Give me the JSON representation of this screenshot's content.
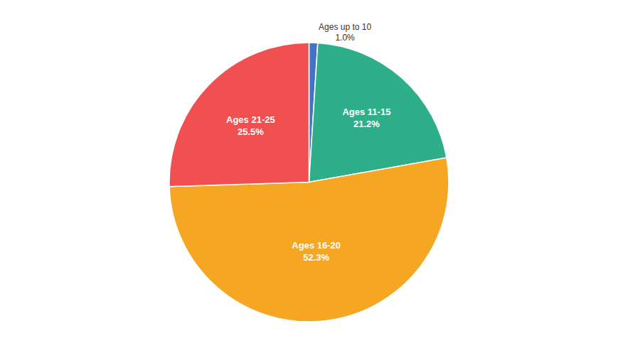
{
  "chart_data": {
    "type": "pie",
    "categories": [
      "Ages up to 10",
      "Ages 11-15",
      "Ages 16-20",
      "Ages 21-25"
    ],
    "values": [
      1.0,
      21.2,
      52.3,
      25.5
    ],
    "value_labels": [
      "1.0%",
      "21.2%",
      "52.3%",
      "25.5%"
    ],
    "colors": [
      "#4472C4",
      "#2EAF8A",
      "#F5A623",
      "#F05050"
    ],
    "data_labels": true
  }
}
